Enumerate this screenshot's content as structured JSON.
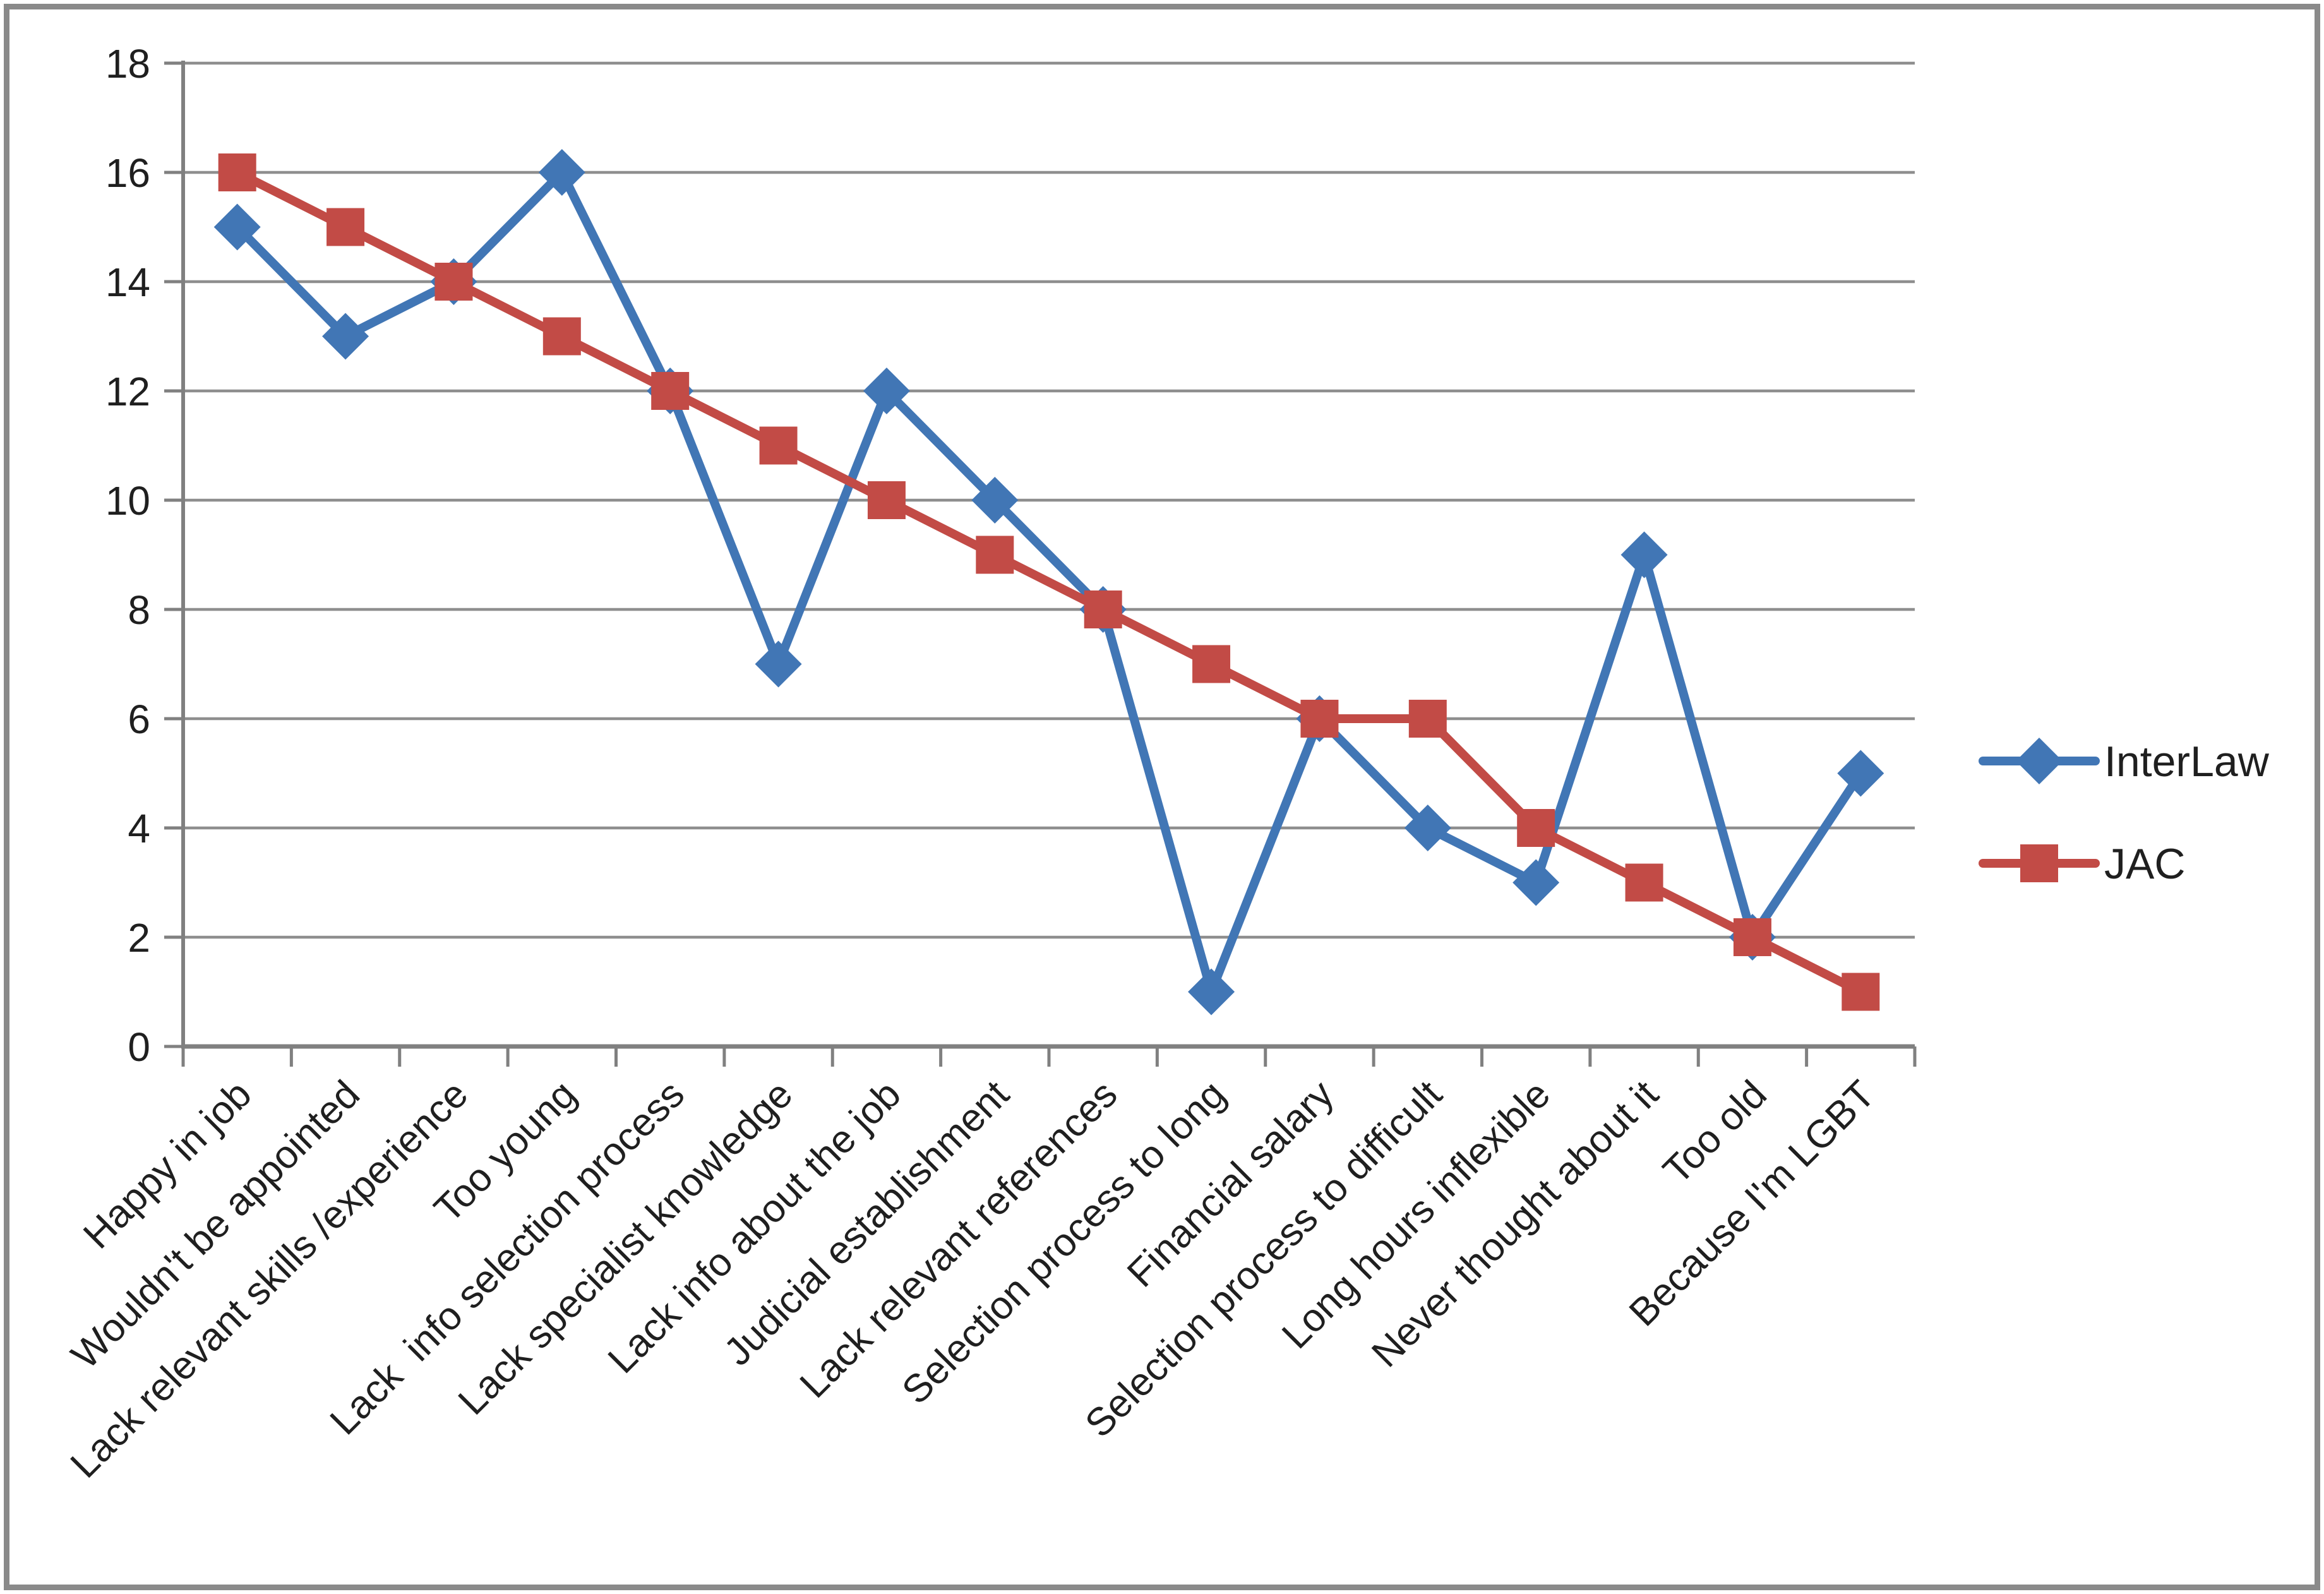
{
  "chart_data": {
    "type": "line",
    "title": "",
    "xlabel": "",
    "ylabel": "",
    "categories": [
      "Happy in job",
      "Wouldn't be appointed",
      "Lack relevant skills /experience",
      "Too young",
      "Lack  info selection process",
      "Lack specialist knowledge",
      "Lack info about the job",
      "Judicial establishment",
      "Lack relevant references",
      "Selection process to long",
      "Financial salary",
      "Selection process to difficult",
      "Long hours inflexible",
      "Never thought about it",
      "Too old",
      "Because I'm LGBT"
    ],
    "series": [
      {
        "name": "InterLaw",
        "color": "#4176b5",
        "marker": "diamond",
        "values": [
          15,
          13,
          14,
          16,
          12,
          7,
          12,
          10,
          8,
          1,
          6,
          4,
          3,
          9,
          2,
          5
        ]
      },
      {
        "name": "JAC",
        "color": "#c24b46",
        "marker": "square",
        "values": [
          16,
          15,
          14,
          13,
          12,
          11,
          10,
          9,
          8,
          7,
          6,
          6,
          4,
          3,
          2,
          1
        ]
      }
    ],
    "ylim": [
      0,
      18
    ],
    "yticks": [
      0,
      2,
      4,
      6,
      8,
      10,
      12,
      14,
      16,
      18
    ],
    "ytick_labels": [
      "0",
      "2",
      "4",
      "6",
      "8",
      "10",
      "12",
      "14",
      "16",
      "18"
    ],
    "grid": true,
    "legend_position": "right",
    "x_label_rotation_deg": -45
  },
  "style": {
    "background": "#ffffff",
    "frame_border_color": "#8a8a8a",
    "grid_color": "#8e8e8e",
    "axis_color": "#808080",
    "tick_color": "#808080",
    "text_color": "#1f1f1f"
  }
}
